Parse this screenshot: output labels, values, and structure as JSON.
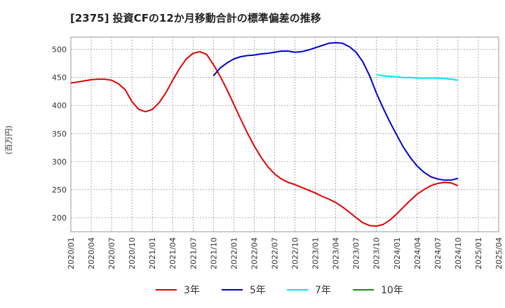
{
  "chart_data": {
    "type": "line",
    "title": "[2375]  投資CFの12か月移動合計の標準偏差の推移",
    "ylabel": "(百万円)",
    "xlabel": "",
    "ylim": [
      175,
      522
    ],
    "yticks": [
      200,
      250,
      300,
      350,
      400,
      450,
      500
    ],
    "x_ticks": [
      "2020/01",
      "2020/04",
      "2020/07",
      "2020/10",
      "2021/01",
      "2021/04",
      "2021/07",
      "2021/10",
      "2022/01",
      "2022/04",
      "2022/07",
      "2022/10",
      "2023/01",
      "2023/04",
      "2023/07",
      "2023/10",
      "2024/01",
      "2024/04",
      "2024/07",
      "2024/10",
      "2025/01",
      "2025/04"
    ],
    "xlim": [
      "2020/01",
      "2025/04"
    ],
    "grid": true,
    "legend_position": "bottom",
    "series": [
      {
        "name": "3年",
        "color": "#e00000",
        "points": [
          [
            "2020/01",
            440
          ],
          [
            "2020/02",
            442
          ],
          [
            "2020/03",
            444
          ],
          [
            "2020/04",
            446
          ],
          [
            "2020/05",
            447
          ],
          [
            "2020/06",
            447
          ],
          [
            "2020/07",
            445
          ],
          [
            "2020/08",
            439
          ],
          [
            "2020/09",
            428
          ],
          [
            "2020/10",
            407
          ],
          [
            "2020/11",
            393
          ],
          [
            "2020/12",
            389
          ],
          [
            "2021/01",
            393
          ],
          [
            "2021/02",
            405
          ],
          [
            "2021/03",
            423
          ],
          [
            "2021/04",
            445
          ],
          [
            "2021/05",
            466
          ],
          [
            "2021/06",
            483
          ],
          [
            "2021/07",
            493
          ],
          [
            "2021/08",
            496
          ],
          [
            "2021/09",
            491
          ],
          [
            "2021/10",
            473
          ],
          [
            "2021/11",
            452
          ],
          [
            "2021/12",
            428
          ],
          [
            "2022/01",
            402
          ],
          [
            "2022/02",
            376
          ],
          [
            "2022/03",
            351
          ],
          [
            "2022/04",
            328
          ],
          [
            "2022/05",
            308
          ],
          [
            "2022/06",
            291
          ],
          [
            "2022/07",
            278
          ],
          [
            "2022/08",
            269
          ],
          [
            "2022/09",
            263
          ],
          [
            "2022/10",
            259
          ],
          [
            "2022/11",
            254
          ],
          [
            "2022/12",
            249
          ],
          [
            "2023/01",
            244
          ],
          [
            "2023/02",
            238
          ],
          [
            "2023/03",
            233
          ],
          [
            "2023/04",
            227
          ],
          [
            "2023/05",
            219
          ],
          [
            "2023/06",
            210
          ],
          [
            "2023/07",
            200
          ],
          [
            "2023/08",
            191
          ],
          [
            "2023/09",
            186
          ],
          [
            "2023/10",
            185
          ],
          [
            "2023/11",
            188
          ],
          [
            "2023/12",
            196
          ],
          [
            "2024/01",
            207
          ],
          [
            "2024/02",
            219
          ],
          [
            "2024/03",
            231
          ],
          [
            "2024/04",
            242
          ],
          [
            "2024/05",
            250
          ],
          [
            "2024/06",
            257
          ],
          [
            "2024/07",
            261
          ],
          [
            "2024/08",
            263
          ],
          [
            "2024/09",
            262
          ],
          [
            "2024/10",
            257
          ]
        ]
      },
      {
        "name": "5年",
        "color": "#0000d0",
        "points": [
          [
            "2021/10",
            453
          ],
          [
            "2021/11",
            467
          ],
          [
            "2021/12",
            476
          ],
          [
            "2022/01",
            483
          ],
          [
            "2022/02",
            487
          ],
          [
            "2022/03",
            489
          ],
          [
            "2022/04",
            490
          ],
          [
            "2022/05",
            492
          ],
          [
            "2022/06",
            493
          ],
          [
            "2022/07",
            495
          ],
          [
            "2022/08",
            497
          ],
          [
            "2022/09",
            497
          ],
          [
            "2022/10",
            495
          ],
          [
            "2022/11",
            496
          ],
          [
            "2022/12",
            499
          ],
          [
            "2023/01",
            503
          ],
          [
            "2023/02",
            507
          ],
          [
            "2023/03",
            511
          ],
          [
            "2023/04",
            512
          ],
          [
            "2023/05",
            511
          ],
          [
            "2023/06",
            505
          ],
          [
            "2023/07",
            495
          ],
          [
            "2023/08",
            478
          ],
          [
            "2023/09",
            453
          ],
          [
            "2023/10",
            422
          ],
          [
            "2023/11",
            395
          ],
          [
            "2023/12",
            370
          ],
          [
            "2024/01",
            347
          ],
          [
            "2024/02",
            325
          ],
          [
            "2024/03",
            307
          ],
          [
            "2024/04",
            292
          ],
          [
            "2024/05",
            281
          ],
          [
            "2024/06",
            273
          ],
          [
            "2024/07",
            269
          ],
          [
            "2024/08",
            267
          ],
          [
            "2024/09",
            267
          ],
          [
            "2024/10",
            270
          ]
        ]
      },
      {
        "name": "7年",
        "color": "#00e5ee",
        "points": [
          [
            "2023/10",
            455
          ],
          [
            "2023/11",
            453
          ],
          [
            "2023/12",
            452
          ],
          [
            "2024/01",
            451
          ],
          [
            "2024/02",
            450
          ],
          [
            "2024/03",
            450
          ],
          [
            "2024/04",
            449
          ],
          [
            "2024/05",
            449
          ],
          [
            "2024/06",
            449
          ],
          [
            "2024/07",
            449
          ],
          [
            "2024/08",
            448
          ],
          [
            "2024/09",
            447
          ],
          [
            "2024/10",
            445
          ]
        ]
      },
      {
        "name": "10年",
        "color": "#1a8a1a",
        "points": []
      }
    ]
  }
}
